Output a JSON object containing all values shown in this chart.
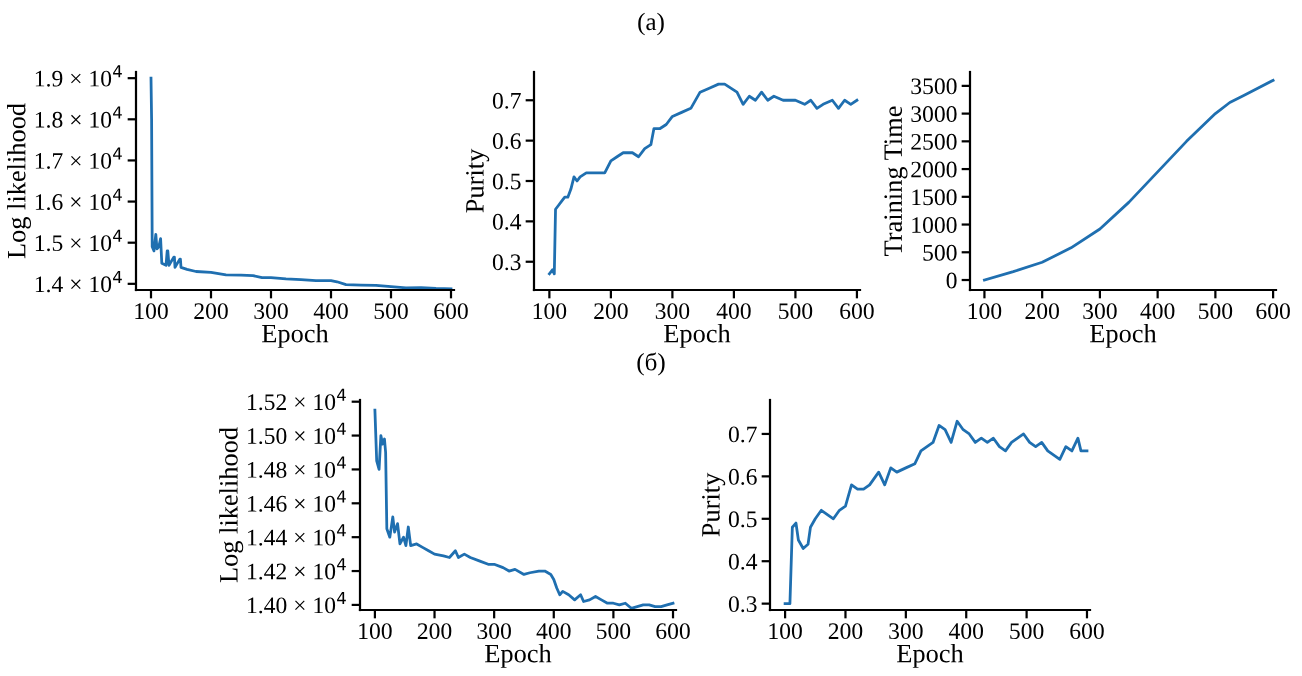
{
  "chart_data": [
    {
      "type": "line",
      "xlabel": "Epoch",
      "ylabel": "Log likelihood",
      "color": "#1f6fb0",
      "x": [
        100,
        101,
        102,
        105,
        108,
        110,
        113,
        116,
        118,
        125,
        127,
        128,
        130,
        138,
        139,
        140,
        148,
        149,
        150,
        160,
        175,
        200,
        225,
        250,
        270,
        285,
        300,
        325,
        350,
        375,
        400,
        410,
        425,
        450,
        475,
        500,
        525,
        550,
        575,
        600
      ],
      "values": [
        19000,
        18000,
        14900,
        14800,
        15200,
        14850,
        14900,
        15100,
        14500,
        14450,
        14800,
        14800,
        14450,
        14650,
        14650,
        14400,
        14600,
        14600,
        14400,
        14350,
        14300,
        14280,
        14220,
        14210,
        14200,
        14150,
        14150,
        14120,
        14100,
        14080,
        14080,
        14050,
        13980,
        13970,
        13960,
        13930,
        13900,
        13910,
        13890,
        13880
      ],
      "xlim": [
        75,
        605
      ],
      "xticks": [
        100,
        200,
        300,
        400,
        500,
        600
      ],
      "ylim": [
        13850,
        19150
      ],
      "yticks": [
        {
          "value": 14000,
          "label": "1.4 × 10$^{4}$"
        },
        {
          "value": 15000,
          "label": "1.5 × 10$^{4}$"
        },
        {
          "value": 16000,
          "label": "1.6 × 10$^{4}$"
        },
        {
          "value": 17000,
          "label": "1.7 × 10$^{4}$"
        },
        {
          "value": 18000,
          "label": "1.8 × 10$^{4}$"
        },
        {
          "value": 19000,
          "label": "1.9 × 10$^{4}$"
        }
      ]
    },
    {
      "type": "line",
      "title": "(a)",
      "xlabel": "Epoch",
      "ylabel": "Purity",
      "color": "#1f6fb0",
      "x": [
        100,
        105,
        108,
        110,
        115,
        120,
        125,
        130,
        135,
        140,
        145,
        150,
        160,
        175,
        190,
        200,
        210,
        220,
        235,
        245,
        255,
        265,
        270,
        280,
        290,
        300,
        315,
        330,
        345,
        360,
        375,
        385,
        395,
        405,
        415,
        425,
        435,
        445,
        455,
        465,
        480,
        500,
        515,
        525,
        535,
        545,
        560,
        570,
        580,
        590,
        600
      ],
      "values": [
        0.27,
        0.28,
        0.27,
        0.43,
        0.44,
        0.45,
        0.46,
        0.46,
        0.48,
        0.51,
        0.5,
        0.51,
        0.52,
        0.52,
        0.52,
        0.55,
        0.56,
        0.57,
        0.57,
        0.56,
        0.58,
        0.59,
        0.63,
        0.63,
        0.64,
        0.66,
        0.67,
        0.68,
        0.72,
        0.73,
        0.74,
        0.74,
        0.73,
        0.72,
        0.69,
        0.71,
        0.7,
        0.72,
        0.7,
        0.71,
        0.7,
        0.7,
        0.69,
        0.7,
        0.68,
        0.69,
        0.7,
        0.68,
        0.7,
        0.69,
        0.7
      ],
      "xlim": [
        75,
        605
      ],
      "xticks": [
        100,
        200,
        300,
        400,
        500,
        600
      ],
      "ylim": [
        0.23,
        0.77
      ],
      "yticks": [
        0.3,
        0.4,
        0.5,
        0.6,
        0.7
      ]
    },
    {
      "type": "line",
      "xlabel": "Epoch",
      "ylabel": "Training Time",
      "color": "#1f6fb0",
      "x": [
        100,
        150,
        200,
        250,
        300,
        350,
        400,
        450,
        500,
        525,
        550,
        600
      ],
      "values": [
        0,
        150,
        320,
        580,
        920,
        1400,
        1950,
        2500,
        3000,
        3200,
        3330,
        3600
      ],
      "xlim": [
        75,
        605
      ],
      "xticks": [
        100,
        200,
        300,
        400,
        500,
        600
      ],
      "ylim": [
        -180,
        3750
      ],
      "yticks": [
        0,
        500,
        1000,
        1500,
        2000,
        2500,
        3000,
        3500
      ]
    },
    {
      "type": "line",
      "xlabel": "Epoch",
      "ylabel": "Log likelihood",
      "color": "#1f6fb0",
      "annotations": [
        "(б)"
      ],
      "x": [
        100,
        103,
        107,
        110,
        113,
        116,
        118,
        120,
        125,
        130,
        133,
        138,
        142,
        148,
        152,
        156,
        160,
        170,
        180,
        190,
        200,
        215,
        225,
        235,
        240,
        250,
        260,
        275,
        290,
        300,
        315,
        325,
        335,
        350,
        360,
        375,
        385,
        395,
        400,
        405,
        410,
        415,
        425,
        435,
        445,
        450,
        460,
        470,
        480,
        490,
        500,
        510,
        520,
        530,
        540,
        550,
        560,
        570,
        580,
        590,
        600
      ],
      "values": [
        15150,
        14850,
        14800,
        15000,
        14950,
        14980,
        14900,
        14450,
        14400,
        14520,
        14430,
        14480,
        14360,
        14400,
        14350,
        14460,
        14350,
        14360,
        14340,
        14320,
        14300,
        14290,
        14280,
        14320,
        14280,
        14300,
        14280,
        14260,
        14240,
        14240,
        14220,
        14200,
        14210,
        14180,
        14190,
        14200,
        14200,
        14180,
        14150,
        14100,
        14060,
        14080,
        14060,
        14030,
        14060,
        14020,
        14030,
        14050,
        14030,
        14010,
        14010,
        14000,
        14010,
        13980,
        13990,
        14000,
        14000,
        13990,
        13990,
        14000,
        14010
      ],
      "xlim": [
        75,
        605
      ],
      "xticks": [
        100,
        200,
        300,
        400,
        500,
        600
      ],
      "ylim": [
        13970,
        15210
      ],
      "yticks": [
        {
          "value": 14000,
          "label": "1.40 × 10$^{4}$"
        },
        {
          "value": 14200,
          "label": "1.42 × 10$^{4}$"
        },
        {
          "value": 14400,
          "label": "1.44 × 10$^{4}$"
        },
        {
          "value": 14600,
          "label": "1.46 × 10$^{4}$"
        },
        {
          "value": 14800,
          "label": "1.48 × 10$^{4}$"
        },
        {
          "value": 15000,
          "label": "1.50 × 10$^{4}$"
        },
        {
          "value": 15200,
          "label": "1.52 × 10$^{4}$"
        }
      ]
    },
    {
      "type": "line",
      "xlabel": "Epoch",
      "ylabel": "Purity",
      "color": "#1f6fb0",
      "x": [
        100,
        108,
        112,
        118,
        122,
        130,
        138,
        142,
        150,
        160,
        170,
        180,
        190,
        200,
        210,
        220,
        230,
        240,
        255,
        265,
        275,
        285,
        300,
        315,
        325,
        335,
        345,
        355,
        365,
        375,
        385,
        395,
        405,
        415,
        425,
        435,
        445,
        455,
        465,
        475,
        485,
        495,
        505,
        515,
        525,
        535,
        545,
        555,
        565,
        575,
        585,
        590,
        600
      ],
      "values": [
        0.3,
        0.3,
        0.48,
        0.49,
        0.45,
        0.43,
        0.44,
        0.48,
        0.5,
        0.52,
        0.51,
        0.5,
        0.52,
        0.53,
        0.58,
        0.57,
        0.57,
        0.58,
        0.61,
        0.58,
        0.62,
        0.61,
        0.62,
        0.63,
        0.66,
        0.67,
        0.68,
        0.72,
        0.71,
        0.68,
        0.73,
        0.71,
        0.7,
        0.68,
        0.69,
        0.68,
        0.69,
        0.67,
        0.66,
        0.68,
        0.69,
        0.7,
        0.68,
        0.67,
        0.68,
        0.66,
        0.65,
        0.64,
        0.67,
        0.66,
        0.69,
        0.66,
        0.66
      ],
      "xlim": [
        75,
        605
      ],
      "xticks": [
        100,
        200,
        300,
        400,
        500,
        600
      ],
      "ylim": [
        0.285,
        0.78
      ],
      "yticks": [
        0.3,
        0.4,
        0.5,
        0.6,
        0.7
      ]
    }
  ]
}
